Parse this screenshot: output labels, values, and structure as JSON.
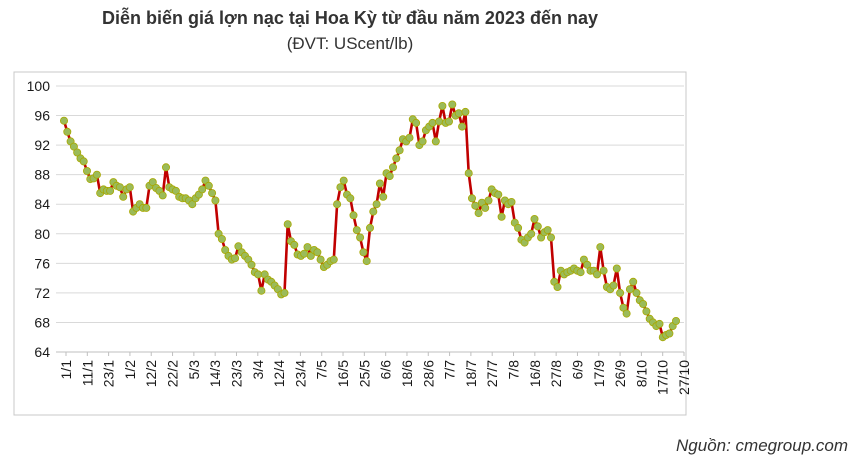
{
  "chart_data": {
    "type": "line",
    "title": "Diễn biến giá lợn nạc tại Hoa Kỳ từ đầu năm 2023 đến nay",
    "subtitle": "(ĐVT: UScent/lb)",
    "source": "Nguồn: cmegroup.com",
    "xlabel": "",
    "ylabel": "",
    "ylim": [
      64,
      100
    ],
    "yticks": [
      "64",
      "68",
      "72",
      "76",
      "80",
      "84",
      "88",
      "92",
      "96",
      "100"
    ],
    "grid": true,
    "x_tick_labels": [
      "1/1",
      "11/1",
      "23/1",
      "1/2",
      "12/2",
      "22/2",
      "5/3",
      "14/3",
      "23/3",
      "3/4",
      "12/4",
      "23/4",
      "7/5",
      "16/5",
      "25/5",
      "6/6",
      "18/6",
      "28/6",
      "7/7",
      "18/7",
      "27/7",
      "7/8",
      "16/8",
      "27/8",
      "6/9",
      "17/9",
      "26/9",
      "8/10",
      "17/10",
      "27/10"
    ],
    "line_color": "#c00000",
    "marker_fill": "#9bbb59",
    "series": [
      {
        "values": [
          95.3,
          93.8,
          92.5,
          91.8,
          91.0,
          90.2,
          89.8,
          88.5,
          87.4,
          87.5,
          88.0,
          85.5,
          86.0,
          85.8,
          85.8,
          87.0,
          86.5,
          86.3,
          85.0,
          86.0,
          86.3,
          83.0,
          83.5,
          84.0,
          83.5,
          83.5,
          86.5,
          87.0,
          86.2,
          85.8,
          85.2,
          89.0,
          86.3,
          86.0,
          85.8,
          85.0,
          84.8,
          84.8,
          84.5,
          84.0,
          84.8,
          85.3,
          86.0,
          87.2,
          86.5,
          85.5,
          84.5,
          80.0,
          79.3,
          77.8,
          77.0,
          76.5,
          76.7,
          78.3,
          77.5,
          77.0,
          76.5,
          75.8,
          74.8,
          74.5,
          72.3,
          74.5,
          73.8,
          73.5,
          73.0,
          72.5,
          71.8,
          72.0,
          81.3,
          79.0,
          78.5,
          77.2,
          77.0,
          77.3,
          78.2,
          77.0,
          77.8,
          77.5,
          76.5,
          75.5,
          75.8,
          76.3,
          76.5,
          84.0,
          86.3,
          87.2,
          85.3,
          84.8,
          82.5,
          80.5,
          79.5,
          77.5,
          76.3,
          80.8,
          83.0,
          84.0,
          86.8,
          85.0,
          88.2,
          87.8,
          89.0,
          90.2,
          91.3,
          92.8,
          92.5,
          93.0,
          95.5,
          95.0,
          92.0,
          92.5,
          94.0,
          94.5,
          95.0,
          92.5,
          95.2,
          97.3,
          95.0,
          95.2,
          97.5,
          96.0,
          96.3,
          94.5,
          96.5,
          88.2,
          84.8,
          83.8,
          82.8,
          84.2,
          83.5,
          84.5,
          86.0,
          85.5,
          85.3,
          82.3,
          84.5,
          84.0,
          84.3,
          81.5,
          80.8,
          79.2,
          78.8,
          79.5,
          80.0,
          82.0,
          81.0,
          79.5,
          80.2,
          80.5,
          79.5,
          73.5,
          72.8,
          75.0,
          74.5,
          74.8,
          75.0,
          75.3,
          75.0,
          74.8,
          76.5,
          75.8,
          75.0,
          75.0,
          74.5,
          78.2,
          75.0,
          72.8,
          72.5,
          73.0,
          75.3,
          72.0,
          70.0,
          69.2,
          72.5,
          73.5,
          72.0,
          71.0,
          70.5,
          69.5,
          68.5,
          68.0,
          67.5,
          67.8,
          66.0,
          66.3,
          66.5,
          67.5,
          68.2
        ]
      }
    ]
  }
}
